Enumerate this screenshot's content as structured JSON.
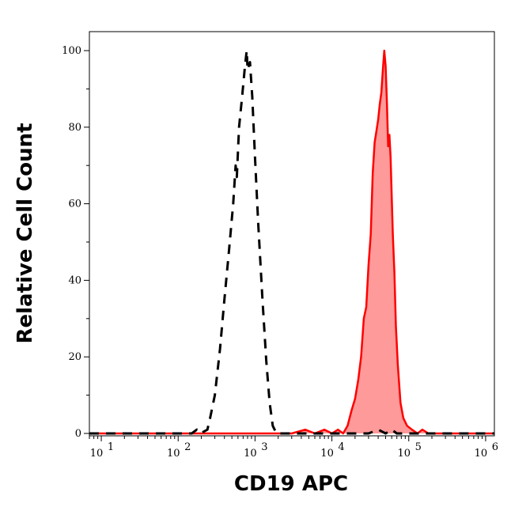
{
  "chart_data": {
    "type": "area",
    "xlabel": "CD19 APC",
    "ylabel": "Relative Cell Count",
    "x_scale": "log",
    "xlim": [
      7,
      1300000
    ],
    "ylim": [
      0,
      100
    ],
    "x_ticks": [
      {
        "value": 10,
        "base": "10",
        "exp": "1"
      },
      {
        "value": 100,
        "base": "10",
        "exp": "2"
      },
      {
        "value": 1000,
        "base": "10",
        "exp": "3"
      },
      {
        "value": 10000,
        "base": "10",
        "exp": "4"
      },
      {
        "value": 100000,
        "base": "10",
        "exp": "5"
      },
      {
        "value": 1000000,
        "base": "10",
        "exp": "6"
      }
    ],
    "y_ticks": [
      0,
      20,
      40,
      60,
      80,
      100
    ],
    "grid": false,
    "series": [
      {
        "style": "dashed",
        "color": "#000000",
        "fill": "none",
        "points": [
          [
            7,
            0
          ],
          [
            150,
            0
          ],
          [
            175,
            1
          ],
          [
            195,
            0
          ],
          [
            240,
            1
          ],
          [
            260,
            4
          ],
          [
            300,
            10
          ],
          [
            350,
            22
          ],
          [
            400,
            35
          ],
          [
            460,
            48
          ],
          [
            520,
            60
          ],
          [
            560,
            70
          ],
          [
            580,
            67
          ],
          [
            620,
            80
          ],
          [
            680,
            88
          ],
          [
            740,
            96
          ],
          [
            780,
            100
          ],
          [
            800,
            95
          ],
          [
            860,
            97
          ],
          [
            920,
            88
          ],
          [
            1000,
            72
          ],
          [
            1100,
            55
          ],
          [
            1250,
            35
          ],
          [
            1400,
            19
          ],
          [
            1550,
            8
          ],
          [
            1700,
            2
          ],
          [
            1900,
            0
          ],
          [
            2200,
            0
          ],
          [
            3000,
            0
          ],
          [
            20000,
            0
          ],
          [
            30000,
            0
          ],
          [
            40000,
            1
          ],
          [
            50000,
            0
          ],
          [
            60000,
            1
          ],
          [
            70000,
            0
          ],
          [
            1300000,
            0
          ]
        ]
      },
      {
        "style": "solid",
        "color": "#ff0000",
        "fill": "#ff9a9a",
        "points": [
          [
            7,
            0
          ],
          [
            3000,
            0
          ],
          [
            4500,
            1
          ],
          [
            6000,
            0
          ],
          [
            8000,
            1
          ],
          [
            10000,
            0
          ],
          [
            12000,
            1
          ],
          [
            14000,
            0
          ],
          [
            16000,
            2
          ],
          [
            18000,
            6
          ],
          [
            20000,
            9
          ],
          [
            22000,
            14
          ],
          [
            24000,
            20
          ],
          [
            26000,
            30
          ],
          [
            28000,
            33
          ],
          [
            30000,
            44
          ],
          [
            32000,
            52
          ],
          [
            34000,
            68
          ],
          [
            36000,
            76
          ],
          [
            38000,
            79
          ],
          [
            40000,
            82
          ],
          [
            42000,
            86
          ],
          [
            44000,
            89
          ],
          [
            46000,
            95
          ],
          [
            48000,
            100
          ],
          [
            50000,
            96
          ],
          [
            52000,
            86
          ],
          [
            54000,
            75
          ],
          [
            56000,
            78
          ],
          [
            58000,
            72
          ],
          [
            60000,
            62
          ],
          [
            62000,
            52
          ],
          [
            65000,
            42
          ],
          [
            68000,
            28
          ],
          [
            72000,
            18
          ],
          [
            78000,
            8
          ],
          [
            85000,
            4
          ],
          [
            95000,
            2
          ],
          [
            110000,
            1
          ],
          [
            130000,
            0
          ],
          [
            150000,
            1
          ],
          [
            180000,
            0
          ],
          [
            250000,
            0
          ],
          [
            1300000,
            0
          ]
        ]
      }
    ]
  }
}
